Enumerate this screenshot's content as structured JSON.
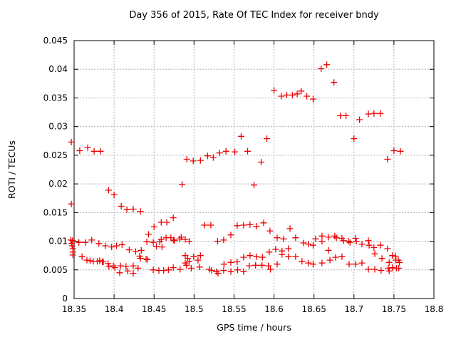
{
  "chart_data": {
    "type": "scatter",
    "title": "Day 356 of 2015, Rate Of TEC Index for receiver bndy",
    "xlabel": "GPS time / hours",
    "ylabel": "ROTI / TECUs",
    "xlim": [
      18.35,
      18.8
    ],
    "ylim": [
      0,
      0.045
    ],
    "grid": true,
    "legend": "none",
    "marker": "plus",
    "marker_color": "#ee0000",
    "grid_color": "#b0b0b0",
    "axis_color": "#000000",
    "xticks": {
      "values": [
        18.35,
        18.4,
        18.45,
        18.5,
        18.55,
        18.6,
        18.65,
        18.7,
        18.75,
        18.8
      ],
      "labels": [
        "18.35",
        "18.4",
        "18.45",
        "18.5",
        "18.55",
        "18.6",
        "18.65",
        "18.7",
        "18.75",
        "18.8"
      ]
    },
    "yticks": {
      "values": [
        0,
        0.005,
        0.01,
        0.015,
        0.02,
        0.025,
        0.03,
        0.035,
        0.04,
        0.045
      ],
      "labels": [
        "0",
        "0.005",
        "0.01",
        "0.015",
        "0.02",
        "0.025",
        "0.03",
        "0.035",
        "0.04",
        "0.045"
      ]
    },
    "points": [
      [
        18.3465,
        0.0273
      ],
      [
        18.3465,
        0.0165
      ],
      [
        18.346,
        0.0102
      ],
      [
        18.347,
        0.0096
      ],
      [
        18.3475,
        0.0092
      ],
      [
        18.348,
        0.0101
      ],
      [
        18.3485,
        0.0087
      ],
      [
        18.3485,
        0.0081
      ],
      [
        18.3485,
        0.0076
      ],
      [
        18.357,
        0.0258
      ],
      [
        18.367,
        0.0263
      ],
      [
        18.375,
        0.0257
      ],
      [
        18.383,
        0.0257
      ],
      [
        18.393,
        0.0189
      ],
      [
        18.4,
        0.0181
      ],
      [
        18.409,
        0.0161
      ],
      [
        18.416,
        0.0155
      ],
      [
        18.424,
        0.0156
      ],
      [
        18.433,
        0.0152
      ],
      [
        18.443,
        0.0112
      ],
      [
        18.45,
        0.0125
      ],
      [
        18.459,
        0.0133
      ],
      [
        18.466,
        0.0133
      ],
      [
        18.474,
        0.0141
      ],
      [
        18.485,
        0.0199
      ],
      [
        18.491,
        0.0243
      ],
      [
        18.499,
        0.024
      ],
      [
        18.508,
        0.0241
      ],
      [
        18.517,
        0.0249
      ],
      [
        18.524,
        0.0246
      ],
      [
        18.532,
        0.0254
      ],
      [
        18.54,
        0.0257
      ],
      [
        18.551,
        0.0256
      ],
      [
        18.567,
        0.0257
      ],
      [
        18.584,
        0.0238
      ],
      [
        18.559,
        0.0283
      ],
      [
        18.591,
        0.0279
      ],
      [
        18.575,
        0.0198
      ],
      [
        18.6,
        0.0363
      ],
      [
        18.609,
        0.0353
      ],
      [
        18.616,
        0.0355
      ],
      [
        18.623,
        0.0355
      ],
      [
        18.629,
        0.0357
      ],
      [
        18.634,
        0.0362
      ],
      [
        18.641,
        0.0353
      ],
      [
        18.649,
        0.0348
      ],
      [
        18.659,
        0.0401
      ],
      [
        18.666,
        0.0408
      ],
      [
        18.675,
        0.0377
      ],
      [
        18.683,
        0.0319
      ],
      [
        18.69,
        0.0319
      ],
      [
        18.7,
        0.0279
      ],
      [
        18.707,
        0.0312
      ],
      [
        18.718,
        0.0322
      ],
      [
        18.725,
        0.0323
      ],
      [
        18.733,
        0.0323
      ],
      [
        18.742,
        0.0243
      ],
      [
        18.75,
        0.0258
      ],
      [
        18.758,
        0.0257
      ],
      [
        18.356,
        0.0098
      ],
      [
        18.364,
        0.0098
      ],
      [
        18.372,
        0.0102
      ],
      [
        18.381,
        0.0096
      ],
      [
        18.389,
        0.0092
      ],
      [
        18.397,
        0.009
      ],
      [
        18.403,
        0.0092
      ],
      [
        18.41,
        0.0094
      ],
      [
        18.419,
        0.0085
      ],
      [
        18.427,
        0.0082
      ],
      [
        18.434,
        0.0084
      ],
      [
        18.432,
        0.0074
      ],
      [
        18.44,
        0.0069
      ],
      [
        18.441,
        0.0099
      ],
      [
        18.449,
        0.0098
      ],
      [
        18.453,
        0.0091
      ],
      [
        18.457,
        0.0099
      ],
      [
        18.459,
        0.0103
      ],
      [
        18.46,
        0.009
      ],
      [
        18.465,
        0.0106
      ],
      [
        18.471,
        0.0106
      ],
      [
        18.4745,
        0.0102
      ],
      [
        18.4755,
        0.0101
      ],
      [
        18.482,
        0.0104
      ],
      [
        18.484,
        0.0107
      ],
      [
        18.489,
        0.0103
      ],
      [
        18.494,
        0.01
      ],
      [
        18.36,
        0.0073
      ],
      [
        18.366,
        0.0067
      ],
      [
        18.37,
        0.0066
      ],
      [
        18.374,
        0.0065
      ],
      [
        18.379,
        0.0065
      ],
      [
        18.382,
        0.0066
      ],
      [
        18.3855,
        0.0064
      ],
      [
        18.3865,
        0.0064
      ],
      [
        18.3925,
        0.0061
      ],
      [
        18.3935,
        0.0056
      ],
      [
        18.399,
        0.0057
      ],
      [
        18.401,
        0.0054
      ],
      [
        18.408,
        0.0057
      ],
      [
        18.407,
        0.0045
      ],
      [
        18.415,
        0.0056
      ],
      [
        18.417,
        0.0048
      ],
      [
        18.424,
        0.0057
      ],
      [
        18.424,
        0.0044
      ],
      [
        18.43,
        0.0053
      ],
      [
        18.433,
        0.007
      ],
      [
        18.4415,
        0.0068
      ],
      [
        18.449,
        0.005
      ],
      [
        18.456,
        0.0049
      ],
      [
        18.462,
        0.0049
      ],
      [
        18.468,
        0.005
      ],
      [
        18.474,
        0.0054
      ],
      [
        18.4825,
        0.0051
      ],
      [
        18.4905,
        0.0058
      ],
      [
        18.492,
        0.007
      ],
      [
        18.494,
        0.0065
      ],
      [
        18.505,
        0.0067
      ],
      [
        18.489,
        0.0062
      ],
      [
        18.4965,
        0.0053
      ],
      [
        18.507,
        0.0055
      ],
      [
        18.489,
        0.0075
      ],
      [
        18.4995,
        0.0073
      ],
      [
        18.508,
        0.0075
      ],
      [
        18.513,
        0.0128
      ],
      [
        18.521,
        0.0128
      ],
      [
        18.5295,
        0.01
      ],
      [
        18.537,
        0.0102
      ],
      [
        18.546,
        0.0111
      ],
      [
        18.554,
        0.0127
      ],
      [
        18.562,
        0.0128
      ],
      [
        18.57,
        0.0129
      ],
      [
        18.578,
        0.0126
      ],
      [
        18.587,
        0.0132
      ],
      [
        18.595,
        0.0118
      ],
      [
        18.519,
        0.0051
      ],
      [
        18.522,
        0.0049
      ],
      [
        18.528,
        0.0047
      ],
      [
        18.53,
        0.0044
      ],
      [
        18.537,
        0.0049
      ],
      [
        18.5375,
        0.006
      ],
      [
        18.546,
        0.0047
      ],
      [
        18.546,
        0.0063
      ],
      [
        18.554,
        0.0064
      ],
      [
        18.5545,
        0.005
      ],
      [
        18.562,
        0.0047
      ],
      [
        18.562,
        0.0072
      ],
      [
        18.569,
        0.0057
      ],
      [
        18.57,
        0.0075
      ],
      [
        18.577,
        0.0058
      ],
      [
        18.578,
        0.0073
      ],
      [
        18.585,
        0.0058
      ],
      [
        18.5855,
        0.0072
      ],
      [
        18.593,
        0.0057
      ],
      [
        18.594,
        0.0081
      ],
      [
        18.5955,
        0.0051
      ],
      [
        18.604,
        0.006
      ],
      [
        18.602,
        0.0086
      ],
      [
        18.604,
        0.0106
      ],
      [
        18.61,
        0.0083
      ],
      [
        18.612,
        0.0104
      ],
      [
        18.618,
        0.0087
      ],
      [
        18.62,
        0.0122
      ],
      [
        18.61,
        0.0077
      ],
      [
        18.618,
        0.0073
      ],
      [
        18.627,
        0.0073
      ],
      [
        18.627,
        0.0106
      ],
      [
        18.635,
        0.0065
      ],
      [
        18.637,
        0.0097
      ],
      [
        18.643,
        0.0062
      ],
      [
        18.643,
        0.0095
      ],
      [
        18.649,
        0.006
      ],
      [
        18.649,
        0.0093
      ],
      [
        18.652,
        0.0104
      ],
      [
        18.66,
        0.0109
      ],
      [
        18.66,
        0.01
      ],
      [
        18.668,
        0.0107
      ],
      [
        18.676,
        0.0109
      ],
      [
        18.678,
        0.0106
      ],
      [
        18.685,
        0.0105
      ],
      [
        18.687,
        0.0101
      ],
      [
        18.693,
        0.01
      ],
      [
        18.695,
        0.0098
      ],
      [
        18.702,
        0.0105
      ],
      [
        18.703,
        0.01
      ],
      [
        18.71,
        0.0095
      ],
      [
        18.718,
        0.0101
      ],
      [
        18.719,
        0.0093
      ],
      [
        18.725,
        0.0089
      ],
      [
        18.733,
        0.0093
      ],
      [
        18.742,
        0.0087
      ],
      [
        18.668,
        0.0084
      ],
      [
        18.66,
        0.0062
      ],
      [
        18.67,
        0.0067
      ],
      [
        18.677,
        0.0072
      ],
      [
        18.685,
        0.0073
      ],
      [
        18.694,
        0.006
      ],
      [
        18.702,
        0.006
      ],
      [
        18.71,
        0.0062
      ],
      [
        18.726,
        0.0078
      ],
      [
        18.735,
        0.007
      ],
      [
        18.744,
        0.0063
      ],
      [
        18.748,
        0.0075
      ],
      [
        18.7525,
        0.0067
      ],
      [
        18.7555,
        0.0067
      ],
      [
        18.752,
        0.0074
      ],
      [
        18.718,
        0.0051
      ],
      [
        18.726,
        0.0051
      ],
      [
        18.734,
        0.0049
      ],
      [
        18.744,
        0.0048
      ],
      [
        18.743,
        0.0053
      ],
      [
        18.748,
        0.0054
      ],
      [
        18.753,
        0.0053
      ],
      [
        18.756,
        0.0053
      ],
      [
        18.757,
        0.0063
      ]
    ]
  }
}
